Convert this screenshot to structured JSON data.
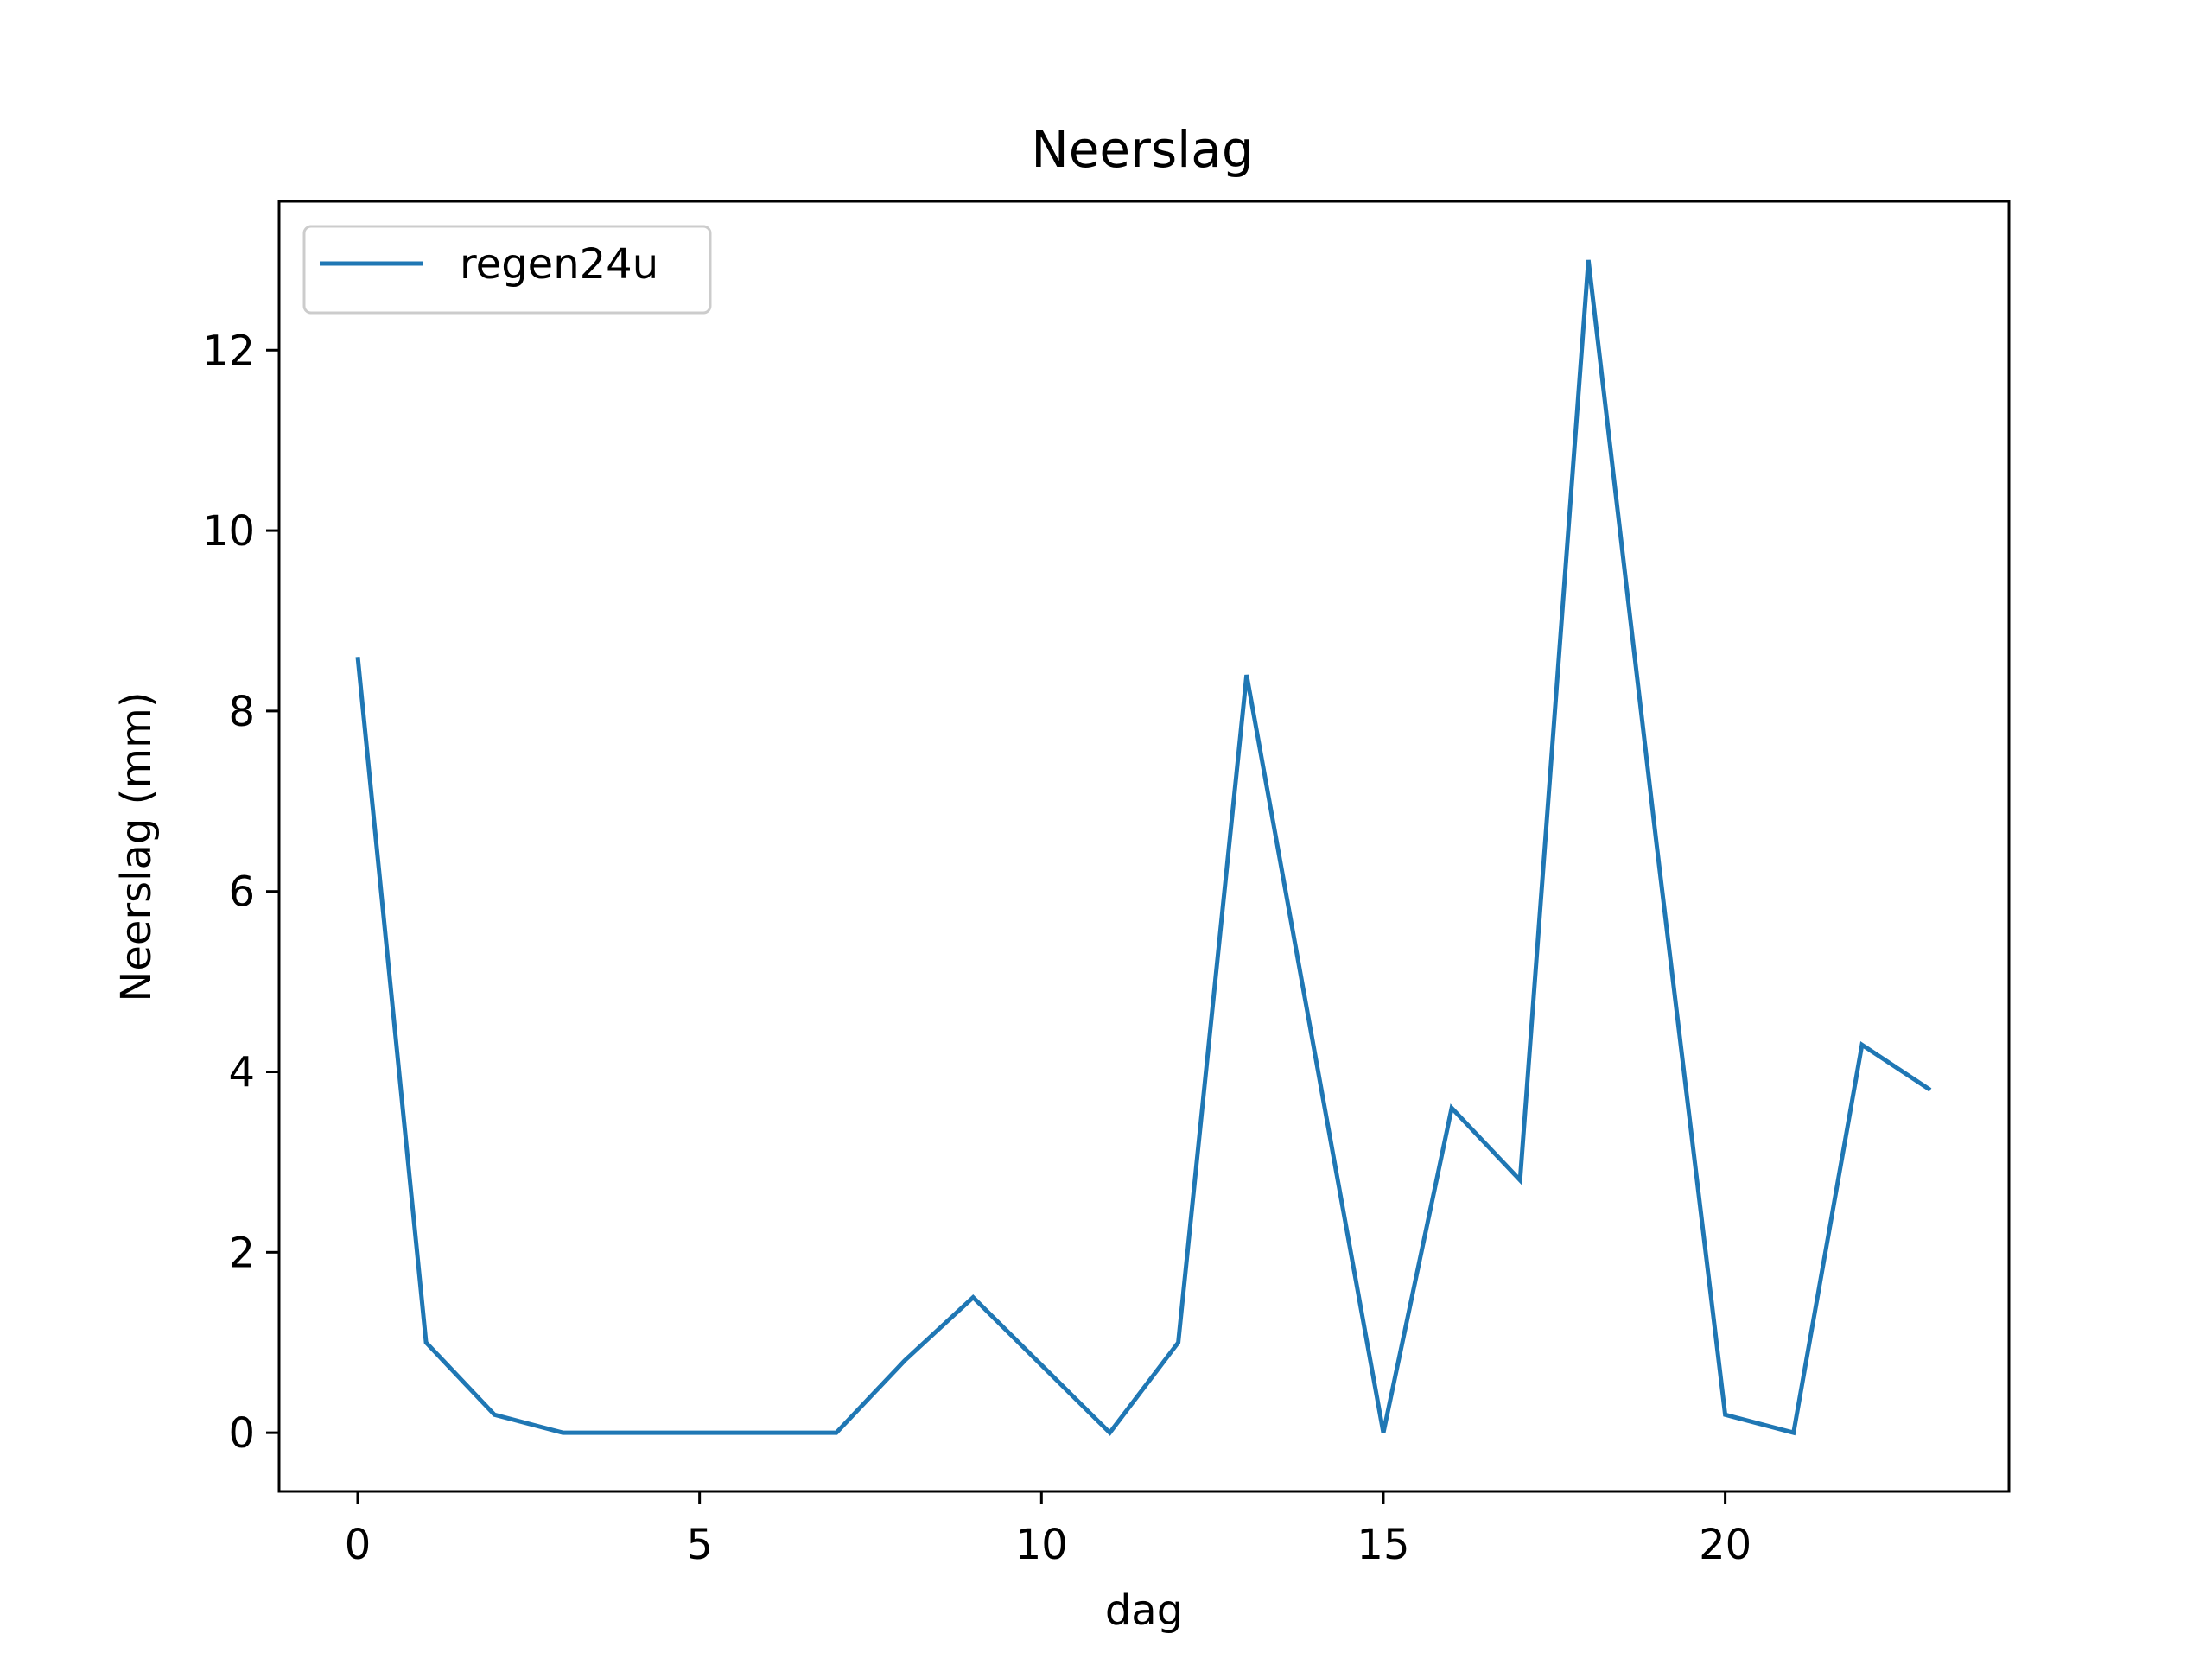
{
  "chart_data": {
    "type": "line",
    "title": "Neerslag",
    "xlabel": "dag",
    "ylabel": "Neerslag (mm)",
    "xlim": [
      -1.15,
      24.15
    ],
    "ylim": [
      -0.65,
      13.65
    ],
    "xticks": [
      0,
      5,
      10,
      15,
      20
    ],
    "yticks": [
      0,
      2,
      4,
      6,
      8,
      10,
      12
    ],
    "legend_position": "top-left",
    "grid": false,
    "series": [
      {
        "name": "regen24u",
        "color": "#1f77b4",
        "x": [
          0,
          1,
          2,
          3,
          4,
          5,
          6,
          7,
          8,
          9,
          10,
          11,
          12,
          13,
          14,
          15,
          16,
          17,
          18,
          19,
          20,
          21,
          22,
          23
        ],
        "y": [
          8.6,
          1.0,
          0.2,
          0.0,
          0.0,
          0.0,
          0.0,
          0.0,
          0.8,
          1.5,
          0.75,
          0.0,
          1.0,
          8.4,
          4.2,
          0.0,
          3.6,
          2.8,
          13.0,
          6.5,
          0.2,
          0.0,
          4.3,
          3.8
        ]
      }
    ]
  }
}
